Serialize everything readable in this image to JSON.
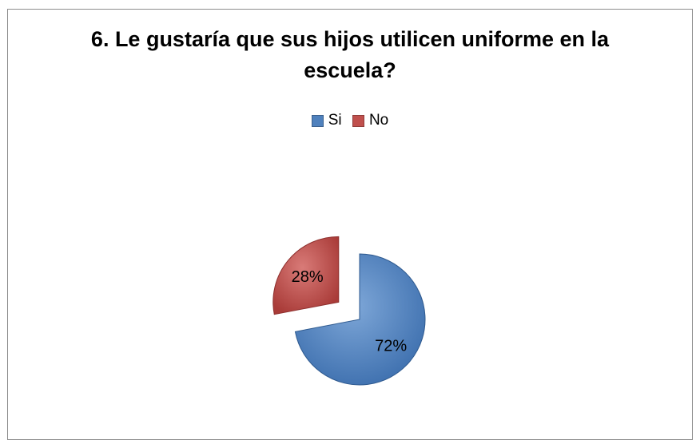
{
  "chart_data": {
    "type": "pie",
    "title": "6. Le gustaría que sus hijos utilicen uniforme en la escuela?",
    "title_lines": [
      "6. Le gustaría que sus hijos utilicen uniforme en la",
      "escuela?"
    ],
    "legend_position": "top",
    "slices": [
      {
        "name": "Si",
        "value": 72,
        "label": "72%",
        "color": "#4f81bd",
        "exploded": false
      },
      {
        "name": "No",
        "value": 28,
        "label": "28%",
        "color": "#c0504d",
        "exploded": true
      }
    ]
  }
}
